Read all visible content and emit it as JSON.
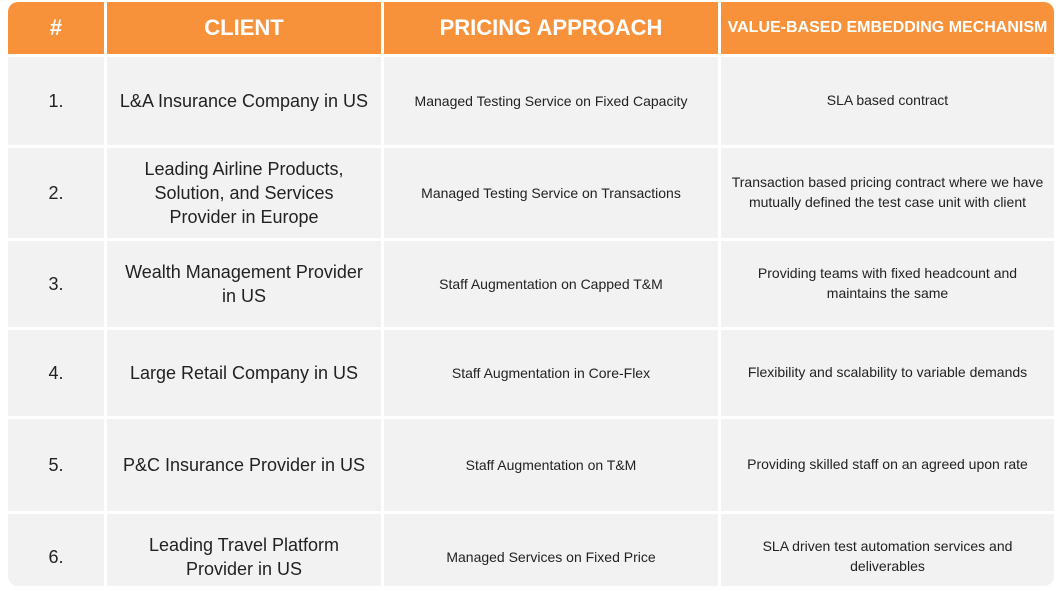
{
  "headers": {
    "num": "#",
    "client": "CLIENT",
    "pricing": "PRICING APPROACH",
    "value": "VALUE-BASED EMBEDDING MECHANISM"
  },
  "rows": [
    {
      "num": "1.",
      "client": "L&A Insurance Company in US",
      "pricing": "Managed Testing Service on Fixed Capacity",
      "value": "SLA based contract"
    },
    {
      "num": "2.",
      "client": "Leading Airline Products, Solution, and Services Provider in Europe",
      "pricing": "Managed Testing Service on Transactions",
      "value": "Transaction based pricing contract where we have mutually defined the test case unit with client"
    },
    {
      "num": "3.",
      "client": "Wealth Management Provider in US",
      "pricing": "Staff Augmentation on Capped T&M",
      "value": "Providing teams with fixed headcount and maintains the same"
    },
    {
      "num": "4.",
      "client": "Large Retail Company in US",
      "pricing": "Staff Augmentation in Core-Flex",
      "value": "Flexibility and scalability to variable demands"
    },
    {
      "num": "5.",
      "client": "P&C Insurance Provider in US",
      "pricing": "Staff Augmentation on T&M",
      "value": "Providing skilled staff on an agreed upon rate"
    },
    {
      "num": "6.",
      "client": "Leading Travel Platform Provider in US",
      "pricing": "Managed Services on Fixed Price",
      "value": "SLA driven test automation services and deliverables"
    }
  ],
  "colors": {
    "header_bg": "#f7923a",
    "header_text": "#ffffff",
    "cell_bg": "#f2f2f2"
  }
}
